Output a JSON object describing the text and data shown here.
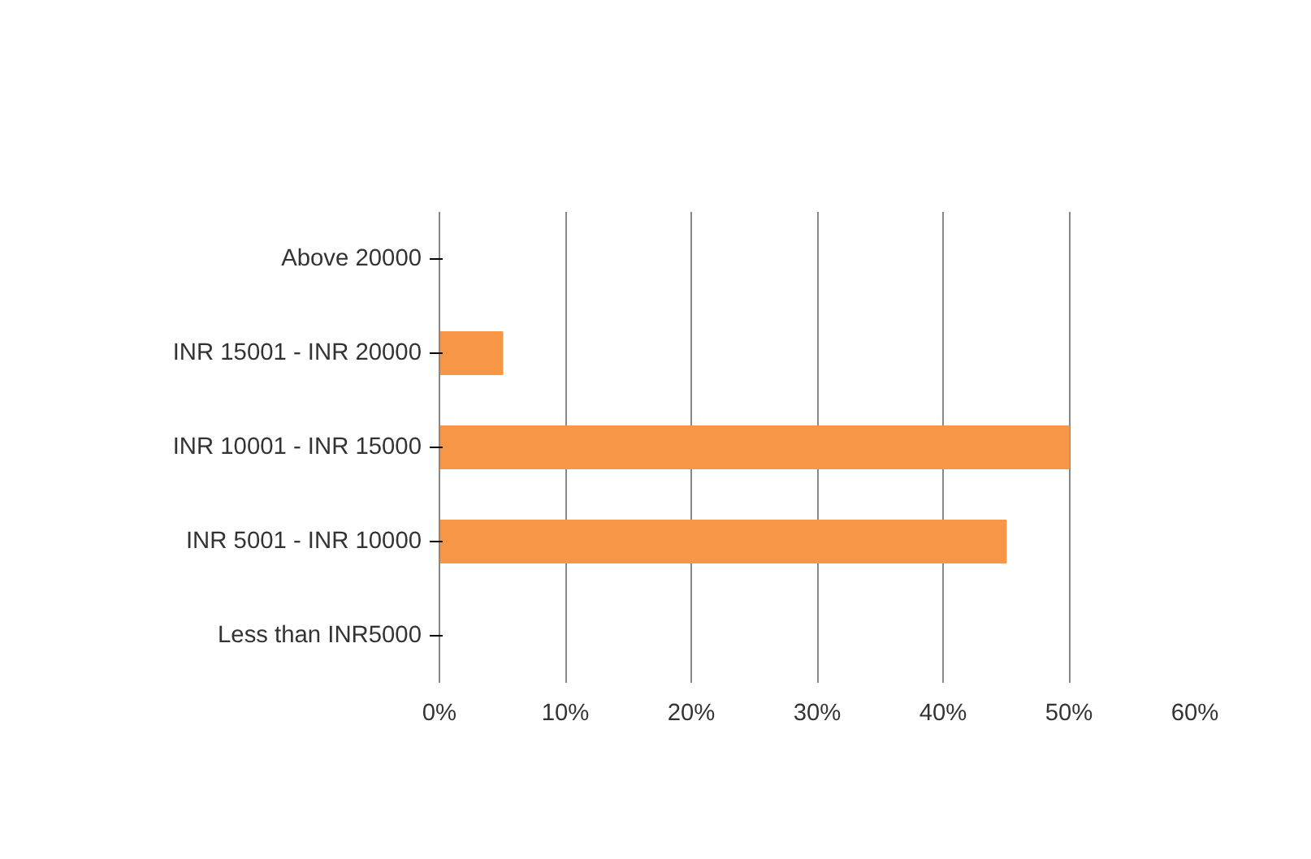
{
  "chart_data": {
    "type": "bar",
    "orientation": "horizontal",
    "categories": [
      "Above 20000",
      "INR 15001 - INR 20000",
      "INR 10001 - INR 15000",
      "INR 5001 - INR 10000",
      "Less than INR5000"
    ],
    "values": [
      0,
      5,
      50,
      45,
      0
    ],
    "color": "#f79646",
    "xlim": [
      0,
      60
    ],
    "xticks": [
      {
        "value": 0,
        "label": "0%"
      },
      {
        "value": 10,
        "label": "10%"
      },
      {
        "value": 20,
        "label": "20%"
      },
      {
        "value": 30,
        "label": "30%"
      },
      {
        "value": 40,
        "label": "40%"
      },
      {
        "value": 50,
        "label": "50%"
      },
      {
        "value": 60,
        "label": "60%"
      }
    ],
    "grid": "x"
  }
}
